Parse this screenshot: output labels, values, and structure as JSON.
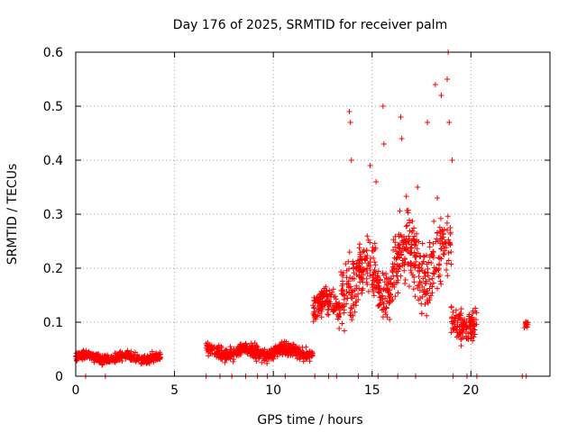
{
  "chart_data": {
    "type": "scatter",
    "title": "Day 176 of 2025, SRMTID for receiver palm",
    "xlabel": "GPS time / hours",
    "ylabel": "SRMTID / TECUs",
    "xlim": [
      0,
      24
    ],
    "ylim": [
      0,
      0.6
    ],
    "xticks": [
      0,
      5,
      10,
      15,
      20
    ],
    "xtick_labels": [
      "0",
      "5",
      "10",
      "15",
      "20"
    ],
    "yticks": [
      0,
      0.1,
      0.2,
      0.3,
      0.4,
      0.5,
      0.6
    ],
    "ytick_labels": [
      "0",
      "0.1",
      "0.2",
      "0.3",
      "0.4",
      "0.5",
      "0.6"
    ],
    "grid": true,
    "marker": "plus",
    "color": "#ff0000",
    "segments": [
      {
        "start": 0.0,
        "end": 4.3,
        "mean": 0.035,
        "spread": 0.015,
        "n": 420
      },
      {
        "start": 6.6,
        "end": 12.0,
        "mean": 0.045,
        "spread": 0.02,
        "n": 520
      },
      {
        "start": 12.0,
        "end": 13.4,
        "mean": 0.13,
        "spread": 0.05,
        "n": 130
      },
      {
        "start": 13.4,
        "end": 16.0,
        "mean": 0.18,
        "spread": 0.1,
        "n": 260
      },
      {
        "start": 16.0,
        "end": 19.0,
        "mean": 0.21,
        "spread": 0.11,
        "n": 300
      },
      {
        "start": 19.0,
        "end": 20.3,
        "mean": 0.1,
        "spread": 0.05,
        "n": 130
      },
      {
        "start": 22.7,
        "end": 22.9,
        "mean": 0.095,
        "spread": 0.01,
        "n": 12
      }
    ],
    "outliers": [
      {
        "x": 13.85,
        "y": 0.49
      },
      {
        "x": 13.9,
        "y": 0.47
      },
      {
        "x": 13.95,
        "y": 0.4
      },
      {
        "x": 15.55,
        "y": 0.5
      },
      {
        "x": 15.6,
        "y": 0.43
      },
      {
        "x": 16.45,
        "y": 0.48
      },
      {
        "x": 16.5,
        "y": 0.44
      },
      {
        "x": 18.2,
        "y": 0.54
      },
      {
        "x": 18.5,
        "y": 0.52
      },
      {
        "x": 18.85,
        "y": 0.6
      },
      {
        "x": 18.8,
        "y": 0.55
      },
      {
        "x": 18.9,
        "y": 0.47
      },
      {
        "x": 19.05,
        "y": 0.4
      },
      {
        "x": 17.8,
        "y": 0.47
      },
      {
        "x": 14.9,
        "y": 0.39
      },
      {
        "x": 15.2,
        "y": 0.36
      },
      {
        "x": 17.3,
        "y": 0.35
      },
      {
        "x": 18.3,
        "y": 0.33
      }
    ],
    "zero_markers": [
      0.5,
      1.5,
      6.6,
      7.3,
      7.9,
      8.6,
      9.2,
      9.7,
      10.6,
      12.1,
      12.8,
      13.2,
      14.3,
      15.3,
      16.3,
      17.2,
      19.1,
      19.8,
      20.3,
      22.6,
      22.8
    ]
  }
}
